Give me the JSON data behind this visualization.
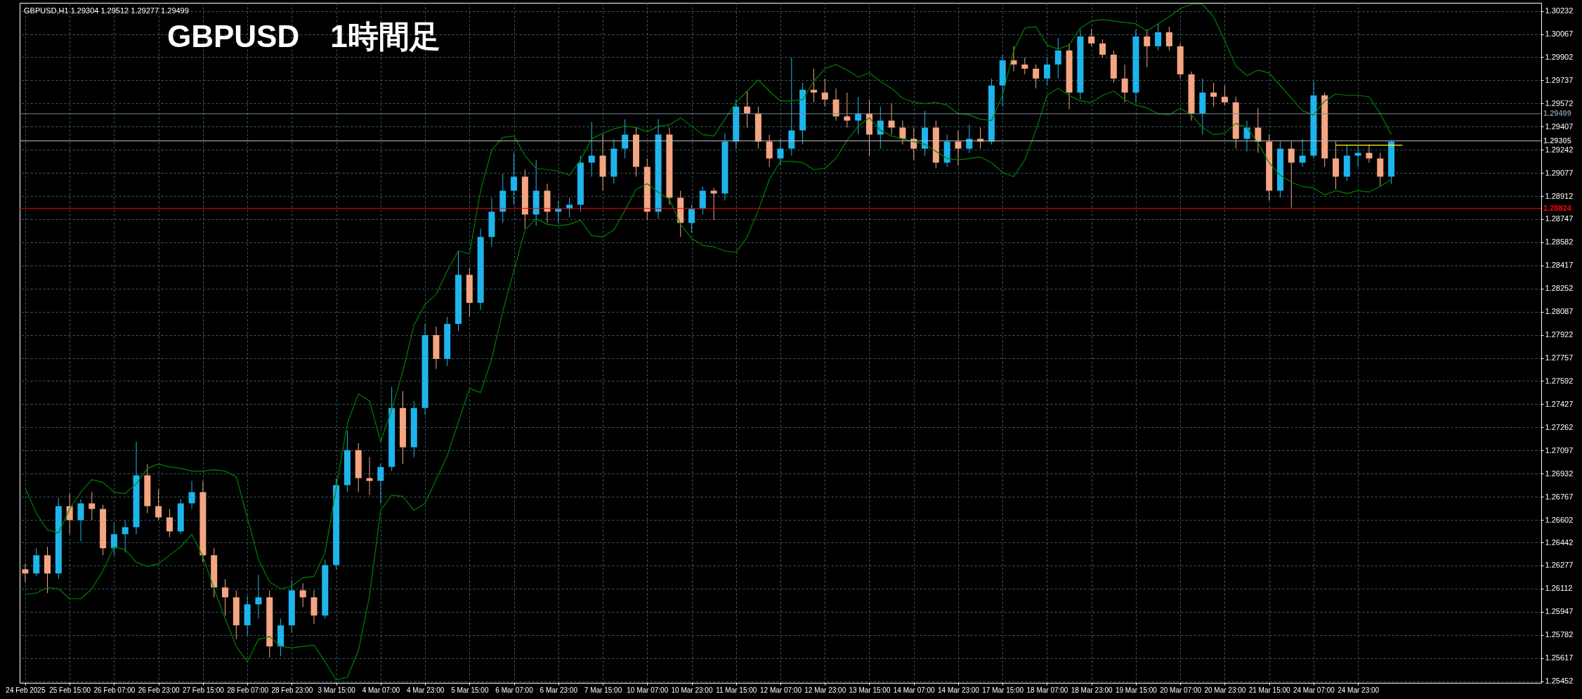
{
  "chart_data": {
    "type": "candlestick",
    "title": "GBPUSD　1時間足",
    "annotations": [
      "GBPUSD,H1  1.29304 1.29512 1.29277 1.29499"
    ],
    "categories": [
      "24 Feb 2025",
      null,
      null,
      null,
      "25 Feb 15:00",
      null,
      null,
      null,
      "26 Feb 07:00",
      null,
      null,
      null,
      "26 Feb 23:00",
      null,
      null,
      null,
      "27 Feb 15:00",
      null,
      null,
      null,
      "28 Feb 07:00",
      null,
      null,
      null,
      "28 Feb 23:00",
      null,
      null,
      null,
      "3 Mar 15:00",
      null,
      null,
      null,
      "4 Mar 07:00",
      null,
      null,
      null,
      "4 Mar 23:00",
      null,
      null,
      null,
      "5 Mar 15:00",
      null,
      null,
      null,
      "6 Mar 07:00",
      null,
      null,
      null,
      "6 Mar 23:00",
      null,
      null,
      null,
      "7 Mar 15:00",
      null,
      null,
      null,
      "10 Mar 07:00",
      null,
      null,
      null,
      "10 Mar 23:00",
      null,
      null,
      null,
      "11 Mar 15:00",
      null,
      null,
      null,
      "12 Mar 07:00",
      null,
      null,
      null,
      "12 Mar 23:00",
      null,
      null,
      null,
      "13 Mar 15:00",
      null,
      null,
      null,
      "14 Mar 07:00",
      null,
      null,
      null,
      "14 Mar 23:00",
      null,
      null,
      null,
      "17 Mar 15:00",
      null,
      null,
      null,
      "18 Mar 07:00",
      null,
      null,
      null,
      "18 Mar 23:00",
      null,
      null,
      null,
      "19 Mar 15:00",
      null,
      null,
      null,
      "20 Mar 07:00",
      null,
      null,
      null,
      "20 Mar 23:00",
      null,
      null,
      null,
      "21 Mar 15:00",
      null,
      null,
      null,
      "24 Mar 07:00",
      null,
      null,
      null,
      "24 Mar 23:00",
      null,
      null,
      null,
      null,
      null,
      null,
      null,
      null,
      null,
      null,
      null,
      null,
      null,
      null,
      null,
      null
    ],
    "ohlc": [
      [
        1.2625,
        1.2629,
        1.2616,
        1.2622
      ],
      [
        1.2622,
        1.264,
        1.262,
        1.2635
      ],
      [
        1.2635,
        1.2641,
        1.2608,
        1.2622
      ],
      [
        1.2622,
        1.2676,
        1.2618,
        1.267
      ],
      [
        1.267,
        1.2679,
        1.265,
        1.266
      ],
      [
        1.266,
        1.2675,
        1.2645,
        1.2672
      ],
      [
        1.2672,
        1.268,
        1.266,
        1.2668
      ],
      [
        1.2668,
        1.2671,
        1.2635,
        1.264
      ],
      [
        1.264,
        1.2658,
        1.2635,
        1.265
      ],
      [
        1.265,
        1.266,
        1.2637,
        1.2655
      ],
      [
        1.2655,
        1.2716,
        1.265,
        1.2692
      ],
      [
        1.2692,
        1.27,
        1.2665,
        1.267
      ],
      [
        1.267,
        1.2682,
        1.266,
        1.2662
      ],
      [
        1.2662,
        1.2668,
        1.2648,
        1.2652
      ],
      [
        1.2652,
        1.2675,
        1.265,
        1.2672
      ],
      [
        1.2672,
        1.2688,
        1.2668,
        1.268
      ],
      [
        1.268,
        1.2688,
        1.263,
        1.2635
      ],
      [
        1.2635,
        1.264,
        1.2605,
        1.2612
      ],
      [
        1.2612,
        1.2618,
        1.2592,
        1.2605
      ],
      [
        1.2605,
        1.261,
        1.2575,
        1.2585
      ],
      [
        1.2585,
        1.2606,
        1.2578,
        1.26
      ],
      [
        1.26,
        1.2621,
        1.259,
        1.2605
      ],
      [
        1.2605,
        1.261,
        1.2562,
        1.257
      ],
      [
        1.257,
        1.259,
        1.2563,
        1.2585
      ],
      [
        1.2585,
        1.2617,
        1.258,
        1.261
      ],
      [
        1.261,
        1.2615,
        1.2598,
        1.2605
      ],
      [
        1.2605,
        1.261,
        1.2586,
        1.2592
      ],
      [
        1.2592,
        1.2632,
        1.259,
        1.2628
      ],
      [
        1.2628,
        1.269,
        1.2625,
        1.2685
      ],
      [
        1.2685,
        1.2724,
        1.268,
        1.271
      ],
      [
        1.271,
        1.2715,
        1.268,
        1.269
      ],
      [
        1.269,
        1.2705,
        1.2678,
        1.2688
      ],
      [
        1.2688,
        1.27,
        1.2672,
        1.2698
      ],
      [
        1.2698,
        1.2755,
        1.2695,
        1.274
      ],
      [
        1.274,
        1.2752,
        1.27,
        1.2712
      ],
      [
        1.2712,
        1.2745,
        1.2705,
        1.274
      ],
      [
        1.274,
        1.28,
        1.2735,
        1.2792
      ],
      [
        1.2792,
        1.2798,
        1.2768,
        1.2775
      ],
      [
        1.2775,
        1.2805,
        1.277,
        1.28
      ],
      [
        1.28,
        1.2852,
        1.2795,
        1.2835
      ],
      [
        1.2835,
        1.284,
        1.2805,
        1.2815
      ],
      [
        1.2815,
        1.2868,
        1.281,
        1.2862
      ],
      [
        1.2862,
        1.289,
        1.2855,
        1.288
      ],
      [
        1.288,
        1.2907,
        1.2872,
        1.2895
      ],
      [
        1.2895,
        1.2922,
        1.2885,
        1.2905
      ],
      [
        1.2905,
        1.291,
        1.2868,
        1.2878
      ],
      [
        1.2878,
        1.2917,
        1.287,
        1.2895
      ],
      [
        1.2895,
        1.29,
        1.2872,
        1.288
      ],
      [
        1.288,
        1.2888,
        1.2872,
        1.2882
      ],
      [
        1.2882,
        1.289,
        1.2876,
        1.2885
      ],
      [
        1.2885,
        1.292,
        1.288,
        1.2915
      ],
      [
        1.2915,
        1.2944,
        1.2905,
        1.292
      ],
      [
        1.292,
        1.2935,
        1.2895,
        1.2905
      ],
      [
        1.2905,
        1.2932,
        1.29,
        1.2925
      ],
      [
        1.2925,
        1.2946,
        1.2918,
        1.2935
      ],
      [
        1.2935,
        1.294,
        1.2905,
        1.2912
      ],
      [
        1.2912,
        1.2918,
        1.2874,
        1.288
      ],
      [
        1.288,
        1.2946,
        1.2875,
        1.2935
      ],
      [
        1.2935,
        1.294,
        1.2885,
        1.289
      ],
      [
        1.289,
        1.2895,
        1.2862,
        1.2872
      ],
      [
        1.2872,
        1.2885,
        1.2865,
        1.2882
      ],
      [
        1.2882,
        1.2898,
        1.2878,
        1.2895
      ],
      [
        1.2895,
        1.2897,
        1.2874,
        1.2893
      ],
      [
        1.2893,
        1.2936,
        1.2888,
        1.293
      ],
      [
        1.293,
        1.296,
        1.2925,
        1.2955
      ],
      [
        1.2955,
        1.2966,
        1.294,
        1.295
      ],
      [
        1.295,
        1.2955,
        1.2925,
        1.293
      ],
      [
        1.293,
        1.2935,
        1.2912,
        1.2918
      ],
      [
        1.2918,
        1.2932,
        1.2913,
        1.2925
      ],
      [
        1.2925,
        1.299,
        1.292,
        1.2938
      ],
      [
        1.2938,
        1.2972,
        1.2928,
        1.2967
      ],
      [
        1.2967,
        1.2982,
        1.2958,
        1.2965
      ],
      [
        1.2965,
        1.2975,
        1.2955,
        1.296
      ],
      [
        1.296,
        1.2968,
        1.2945,
        1.2948
      ],
      [
        1.2948,
        1.2965,
        1.294,
        1.2945
      ],
      [
        1.2945,
        1.2962,
        1.2935,
        1.295
      ],
      [
        1.295,
        1.296,
        1.292,
        1.2935
      ],
      [
        1.2935,
        1.2955,
        1.2925,
        1.2945
      ],
      [
        1.2945,
        1.2957,
        1.2935,
        1.294
      ],
      [
        1.294,
        1.2945,
        1.2928,
        1.2932
      ],
      [
        1.2932,
        1.294,
        1.2917,
        1.2925
      ],
      [
        1.2925,
        1.2952,
        1.292,
        1.294
      ],
      [
        1.294,
        1.2945,
        1.2911,
        1.2915
      ],
      [
        1.2915,
        1.2935,
        1.2912,
        1.293
      ],
      [
        1.293,
        1.2938,
        1.2913,
        1.2925
      ],
      [
        1.2925,
        1.2942,
        1.2922,
        1.2932
      ],
      [
        1.2932,
        1.294,
        1.2925,
        1.293
      ],
      [
        1.293,
        1.2975,
        1.2928,
        1.297
      ],
      [
        1.297,
        1.2992,
        1.2955,
        1.2988
      ],
      [
        1.2988,
        1.2998,
        1.298,
        1.2985
      ],
      [
        1.2985,
        1.299,
        1.2978,
        1.2982
      ],
      [
        1.2982,
        1.2985,
        1.2968,
        1.2975
      ],
      [
        1.2975,
        1.299,
        1.297,
        1.2985
      ],
      [
        1.2985,
        1.3004,
        1.2975,
        1.2995
      ],
      [
        1.2995,
        1.3,
        1.2953,
        1.2965
      ],
      [
        1.2965,
        1.301,
        1.296,
        1.3005
      ],
      [
        1.3005,
        1.301,
        1.2998,
        1.3
      ],
      [
        1.3,
        1.3003,
        1.299,
        1.2992
      ],
      [
        1.2992,
        1.2995,
        1.2972,
        1.2975
      ],
      [
        1.2975,
        1.2985,
        1.2958,
        1.2965
      ],
      [
        1.2965,
        1.301,
        1.2958,
        1.3005
      ],
      [
        1.3005,
        1.301,
        1.2983,
        1.2998
      ],
      [
        1.2998,
        1.3014,
        1.2995,
        1.3008
      ],
      [
        1.3008,
        1.3012,
        1.2995,
        1.2998
      ],
      [
        1.2998,
        1.3,
        1.2975,
        1.2978
      ],
      [
        1.2978,
        1.298,
        1.2945,
        1.295
      ],
      [
        1.295,
        1.2975,
        1.2935,
        1.2965
      ],
      [
        1.2965,
        1.2972,
        1.2955,
        1.2962
      ],
      [
        1.2962,
        1.297,
        1.2956,
        1.2958
      ],
      [
        1.2958,
        1.2962,
        1.2925,
        1.2932
      ],
      [
        1.2932,
        1.2945,
        1.2923,
        1.294
      ],
      [
        1.294,
        1.2954,
        1.2922,
        1.293
      ],
      [
        1.293,
        1.2935,
        1.2888,
        1.2895
      ],
      [
        1.2895,
        1.293,
        1.289,
        1.2925
      ],
      [
        1.2925,
        1.293,
        1.2883,
        1.2915
      ],
      [
        1.2915,
        1.2932,
        1.2912,
        1.292
      ],
      [
        1.292,
        1.2973,
        1.2918,
        1.2963
      ],
      [
        1.2963,
        1.2965,
        1.2912,
        1.2918
      ],
      [
        1.2918,
        1.293,
        1.2896,
        1.2905
      ],
      [
        1.2905,
        1.2928,
        1.2902,
        1.292
      ],
      [
        1.292,
        1.2927,
        1.2912,
        1.2922
      ],
      [
        1.2922,
        1.2928,
        1.2915,
        1.2918
      ],
      [
        1.2918,
        1.2922,
        1.2898,
        1.2905
      ],
      [
        1.2905,
        1.2931,
        1.29,
        1.293
      ],
      null,
      null,
      null,
      null,
      null,
      null,
      null,
      null,
      null,
      null,
      null,
      null,
      null
    ],
    "colors": [
      "#f4a582",
      "#1eb4ec",
      "#f4a582",
      "#1eb4ec",
      "#f4a582",
      "#1eb4ec",
      "#f4a582",
      "#f4a582",
      "#1eb4ec",
      "#1eb4ec",
      "#1eb4ec",
      "#f4a582",
      "#f4a582",
      "#f4a582",
      "#1eb4ec",
      "#1eb4ec",
      "#f4a582",
      "#f4a582",
      "#f4a582",
      "#f4a582",
      "#1eb4ec",
      "#1eb4ec",
      "#f4a582",
      "#1eb4ec",
      "#1eb4ec",
      "#f4a582",
      "#f4a582",
      "#1eb4ec",
      "#1eb4ec",
      "#1eb4ec",
      "#f4a582",
      "#f4a582",
      "#1eb4ec",
      "#1eb4ec",
      "#f4a582",
      "#1eb4ec",
      "#1eb4ec",
      "#f4a582",
      "#1eb4ec",
      "#1eb4ec",
      "#f4a582",
      "#1eb4ec",
      "#1eb4ec",
      "#1eb4ec",
      "#1eb4ec",
      "#f4a582",
      "#1eb4ec",
      "#f4a582",
      "#1eb4ec",
      "#1eb4ec",
      "#1eb4ec",
      "#1eb4ec",
      "#f4a582",
      "#1eb4ec",
      "#1eb4ec",
      "#f4a582",
      "#f4a582",
      "#1eb4ec",
      "#f4a582",
      "#f4a582",
      "#1eb4ec",
      "#1eb4ec",
      "#f4a582",
      "#1eb4ec",
      "#1eb4ec",
      "#f4a582",
      "#f4a582",
      "#f4a582",
      "#1eb4ec",
      "#1eb4ec",
      "#1eb4ec",
      "#f4a582",
      "#f4a582",
      "#f4a582",
      "#f4a582",
      "#1eb4ec",
      "#f4a582",
      "#1eb4ec",
      "#f4a582",
      "#f4a582",
      "#f4a582",
      "#1eb4ec",
      "#f4a582",
      "#1eb4ec",
      "#f4a582",
      "#1eb4ec",
      "#f4a582",
      "#1eb4ec",
      "#1eb4ec",
      "#f4a582",
      "#f4a582",
      "#f4a582",
      "#1eb4ec",
      "#1eb4ec",
      "#f4a582",
      "#1eb4ec",
      "#f4a582",
      "#f4a582",
      "#f4a582",
      "#f4a582",
      "#1eb4ec",
      "#f4a582",
      "#1eb4ec",
      "#f4a582",
      "#f4a582",
      "#f4a582",
      "#1eb4ec",
      "#f4a582",
      "#f4a582",
      "#f4a582",
      "#1eb4ec",
      "#f4a582",
      "#f4a582",
      "#1eb4ec",
      "#f4a582",
      "#1eb4ec",
      "#1eb4ec",
      "#f4a582",
      "#f4a582",
      "#1eb4ec",
      "#1eb4ec",
      "#f4a582",
      "#f4a582",
      "#1eb4ec",
      null,
      null,
      null,
      null,
      null,
      null,
      null,
      null,
      null,
      null,
      null,
      null,
      null
    ],
    "series": [
      {
        "type": "line",
        "color": "#008000",
        "values": [
          1.2683,
          1.2665,
          1.2653,
          1.2651,
          1.2668,
          1.268,
          1.2689,
          1.2687,
          1.268,
          1.2679,
          1.2686,
          1.2697,
          1.27,
          1.2698,
          1.2697,
          1.2695,
          1.2695,
          1.2696,
          1.2695,
          1.2691,
          1.2662,
          1.2632,
          1.2616,
          1.2611,
          1.2613,
          1.2619,
          1.262,
          1.2637,
          1.2683,
          1.2729,
          1.275,
          1.2745,
          1.2716,
          1.2739,
          1.2766,
          1.2799,
          1.2814,
          1.2821,
          1.2838,
          1.2852,
          1.285,
          1.2895,
          1.2924,
          1.2933,
          1.2934,
          1.292,
          1.2911,
          1.291,
          1.2909,
          1.2906,
          1.2917,
          1.2932,
          1.2936,
          1.2939,
          1.2941,
          1.294,
          1.2937,
          1.2941,
          1.2942,
          1.2947,
          1.2941,
          1.2935,
          1.2934,
          1.2946,
          1.2958,
          1.2966,
          1.2974,
          1.2966,
          1.2959,
          1.2959,
          1.296,
          1.2973,
          1.2982,
          1.2985,
          1.2981,
          1.2976,
          1.2979,
          1.2973,
          1.2968,
          1.2961,
          1.2958,
          1.2957,
          1.2958,
          1.2956,
          1.295,
          1.2949,
          1.2946,
          1.2945,
          1.2963,
          1.2995,
          1.3011,
          1.3012,
          1.2999,
          1.2996,
          1.2999,
          1.3011,
          1.3016,
          1.3017,
          1.3016,
          1.3015,
          1.3014,
          1.3009,
          1.3014,
          1.3019,
          1.3025,
          1.3028,
          1.3028,
          1.3019,
          1.3002,
          1.2984,
          1.2977,
          1.2981,
          1.2979,
          1.297,
          1.2961,
          1.2952,
          1.2949,
          1.2959,
          1.2964,
          1.2963,
          1.2963,
          1.2962,
          1.295,
          1.2935,
          null,
          null,
          null,
          null,
          null,
          null,
          null,
          null,
          null,
          null,
          null,
          null,
          null
        ]
      },
      {
        "type": "line",
        "color": "#008000",
        "values": [
          1.2607,
          1.2608,
          1.2612,
          1.2611,
          1.2604,
          1.2604,
          1.2611,
          1.2624,
          1.2641,
          1.2639,
          1.263,
          1.2627,
          1.2629,
          1.2635,
          1.2641,
          1.265,
          1.2634,
          1.2611,
          1.259,
          1.257,
          1.2559,
          1.2575,
          1.2577,
          1.257,
          1.2569,
          1.257,
          1.2571,
          1.2559,
          1.2546,
          1.2548,
          1.2567,
          1.2606,
          1.2667,
          1.2678,
          1.2677,
          1.2667,
          1.2672,
          1.2689,
          1.2706,
          1.273,
          1.2754,
          1.2751,
          1.2775,
          1.2809,
          1.2838,
          1.2867,
          1.2875,
          1.2871,
          1.287,
          1.2871,
          1.2874,
          1.2863,
          1.2862,
          1.2867,
          1.2881,
          1.2896,
          1.29,
          1.2894,
          1.2889,
          1.2871,
          1.2861,
          1.2856,
          1.2855,
          1.2852,
          1.2851,
          1.2862,
          1.2881,
          1.2903,
          1.2916,
          1.2916,
          1.2915,
          1.291,
          1.2911,
          1.2918,
          1.2931,
          1.2941,
          1.2947,
          1.2938,
          1.2934,
          1.2932,
          1.293,
          1.2928,
          1.2923,
          1.2918,
          1.2917,
          1.2918,
          1.2919,
          1.2915,
          1.2908,
          1.2905,
          1.2917,
          1.2938,
          1.2963,
          1.2968,
          1.2963,
          1.2959,
          1.2958,
          1.2963,
          1.2966,
          1.296,
          1.2956,
          1.2954,
          1.295,
          1.2949,
          1.2954,
          1.2949,
          1.294,
          1.2935,
          1.2936,
          1.2943,
          1.294,
          1.2929,
          1.2915,
          1.2906,
          1.2901,
          1.2898,
          1.2897,
          1.2892,
          1.2895,
          1.2893,
          1.2895,
          1.2894,
          1.2898,
          1.2903,
          null,
          null,
          null,
          null,
          null,
          null,
          null,
          null,
          null,
          null,
          null,
          null,
          null
        ]
      },
      {
        "type": "line",
        "color": "#ffff00",
        "values": [
          null,
          null,
          null,
          null,
          null,
          null,
          null,
          null,
          null,
          null,
          null,
          null,
          null,
          null,
          null,
          null,
          null,
          null,
          null,
          null,
          null,
          null,
          null,
          null,
          null,
          null,
          null,
          null,
          null,
          null,
          null,
          null,
          null,
          null,
          null,
          null,
          null,
          null,
          null,
          null,
          null,
          null,
          null,
          null,
          null,
          null,
          null,
          null,
          null,
          null,
          null,
          null,
          null,
          null,
          null,
          null,
          null,
          null,
          null,
          null,
          null,
          null,
          null,
          null,
          null,
          null,
          null,
          null,
          null,
          null,
          null,
          null,
          null,
          null,
          null,
          null,
          null,
          null,
          null,
          null,
          null,
          null,
          null,
          null,
          null,
          null,
          null,
          null,
          null,
          null,
          null,
          null,
          null,
          null,
          null,
          null,
          null,
          null,
          null,
          null,
          null,
          null,
          null,
          null,
          null,
          null,
          null,
          null,
          null,
          null,
          null,
          null,
          null,
          null,
          null,
          null,
          null,
          null,
          1.29275,
          1.29275,
          1.29275,
          1.29275,
          1.29275,
          1.29275,
          1.29275,
          null,
          null,
          null,
          null,
          null,
          null,
          null,
          null,
          null,
          null,
          null,
          null
        ]
      }
    ],
    "ylim": [
      1.2544,
      1.3029
    ],
    "yticks": [
      1.30232,
      1.30067,
      1.29902,
      1.29737,
      1.29572,
      1.29407,
      1.29242,
      1.29077,
      1.28912,
      1.28747,
      1.28582,
      1.28417,
      1.28252,
      1.28087,
      1.27922,
      1.27757,
      1.27592,
      1.27427,
      1.27262,
      1.27097,
      1.26932,
      1.26767,
      1.26602,
      1.26442,
      1.26277,
      1.26112,
      1.25947,
      1.25782,
      1.25617,
      1.25452
    ],
    "grid": true,
    "ref_lines": [
      {
        "axis": "y",
        "value": 1.29499,
        "label": "1.29499",
        "color": "#778899"
      },
      {
        "axis": "y",
        "value": 1.29305,
        "label": "1.29305",
        "color": "#c0c0c0"
      },
      {
        "axis": "y",
        "value": 1.28824,
        "label": "1.28824",
        "color": "#ff0000"
      }
    ]
  }
}
